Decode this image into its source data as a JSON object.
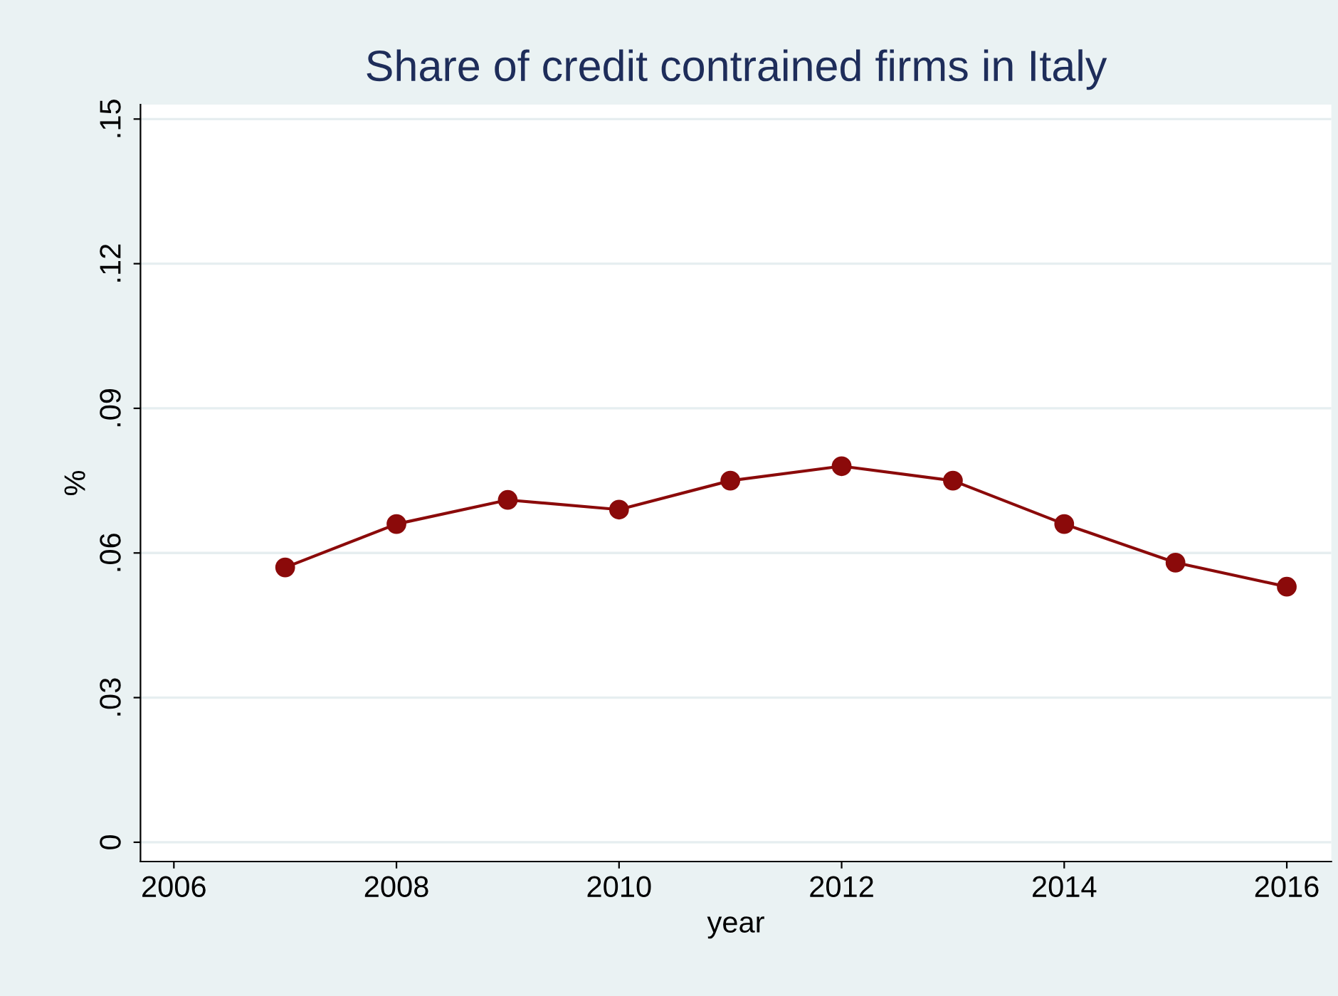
{
  "chart_data": {
    "type": "line",
    "title": "Share of credit contrained firms in Italy",
    "xlabel": "year",
    "ylabel": "%",
    "x": [
      2007,
      2008,
      2009,
      2010,
      2011,
      2012,
      2013,
      2014,
      2015,
      2016
    ],
    "series": [
      {
        "color": "#8b0a0a",
        "values": [
          0.057,
          0.066,
          0.071,
          0.069,
          0.075,
          0.078,
          0.075,
          0.066,
          0.058,
          0.053
        ]
      }
    ],
    "xlim": [
      2005.7,
      2016.4
    ],
    "ylim": [
      -0.004,
      0.153
    ],
    "xticks": [
      2006,
      2008,
      2010,
      2012,
      2014,
      2016
    ],
    "yticks": [
      {
        "value": 0,
        "label": "0"
      },
      {
        "value": 0.03,
        "label": ".03"
      },
      {
        "value": 0.06,
        "label": ".06"
      },
      {
        "value": 0.09,
        "label": ".09"
      },
      {
        "value": 0.12,
        "label": ".12"
      },
      {
        "value": 0.15,
        "label": ".15"
      }
    ],
    "grid": "y",
    "marker": "circle",
    "line_style": "solid"
  }
}
